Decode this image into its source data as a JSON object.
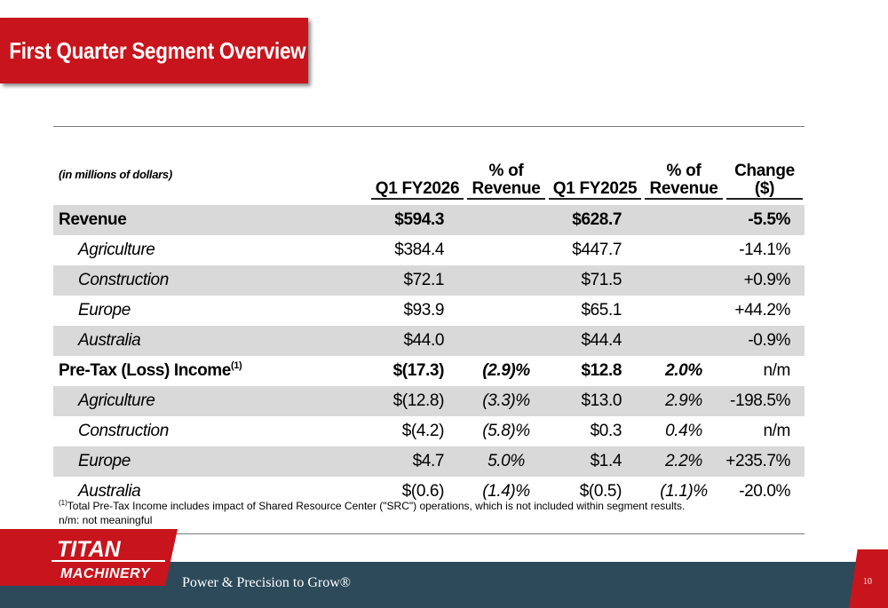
{
  "title": "First Quarter Segment Overview",
  "table": {
    "headers": {
      "label": "(in millions of dollars)",
      "q1_fy2026": "Q1 FY2026",
      "pct1_line1": "% of",
      "pct1_line2": "Revenue",
      "q1_fy2025": "Q1 FY2025",
      "pct2_line1": "% of",
      "pct2_line2": "Revenue",
      "change_line1": "Change",
      "change_line2": "($)"
    },
    "rows": [
      {
        "label": "Revenue",
        "sup": "",
        "q1_fy2026": "$594.3",
        "pct1": "",
        "q1_fy2025": "$628.7",
        "pct2": "",
        "change": "-5.5%"
      },
      {
        "label": "Agriculture",
        "sup": "",
        "q1_fy2026": "$384.4",
        "pct1": "",
        "q1_fy2025": "$447.7",
        "pct2": "",
        "change": "-14.1%"
      },
      {
        "label": "Construction",
        "sup": "",
        "q1_fy2026": "$72.1",
        "pct1": "",
        "q1_fy2025": "$71.5",
        "pct2": "",
        "change": "+0.9%"
      },
      {
        "label": "Europe",
        "sup": "",
        "q1_fy2026": "$93.9",
        "pct1": "",
        "q1_fy2025": "$65.1",
        "pct2": "",
        "change": "+44.2%"
      },
      {
        "label": "Australia",
        "sup": "",
        "q1_fy2026": "$44.0",
        "pct1": "",
        "q1_fy2025": "$44.4",
        "pct2": "",
        "change": "-0.9%"
      },
      {
        "label": "Pre-Tax (Loss) Income",
        "sup": "(1)",
        "q1_fy2026": "$(17.3)",
        "pct1": "(2.9)%",
        "q1_fy2025": "$12.8",
        "pct2": "2.0%",
        "change": "n/m"
      },
      {
        "label": "Agriculture",
        "sup": "",
        "q1_fy2026": "$(12.8)",
        "pct1": "(3.3)%",
        "q1_fy2025": "$13.0",
        "pct2": "2.9%",
        "change": "-198.5%"
      },
      {
        "label": "Construction",
        "sup": "",
        "q1_fy2026": "$(4.2)",
        "pct1": "(5.8)%",
        "q1_fy2025": "$0.3",
        "pct2": "0.4%",
        "change": "n/m"
      },
      {
        "label": "Europe",
        "sup": "",
        "q1_fy2026": "$4.7",
        "pct1": "5.0%",
        "q1_fy2025": "$1.4",
        "pct2": "2.2%",
        "change": "+235.7%"
      },
      {
        "label": "Australia",
        "sup": "",
        "q1_fy2026": "$(0.6)",
        "pct1": "(1.4)%",
        "q1_fy2025": "$(0.5)",
        "pct2": "(1.1)%",
        "change": "-20.0%"
      }
    ]
  },
  "footnote": {
    "marker": "(1)",
    "text": "Total Pre-Tax Income includes impact of Shared Resource Center (\"SRC\") operations, which is not included within segment results.",
    "nm": "n/m: not meaningful"
  },
  "footer": {
    "logo_line1": "TITAN",
    "logo_line2": "MACHINERY",
    "tagline": "Power & Precision to Grow®",
    "page_number": "10"
  },
  "colors": {
    "brand_red": "#c8141c",
    "footer_navy": "#2c4a5a",
    "row_shade": "#d9d9d9"
  }
}
